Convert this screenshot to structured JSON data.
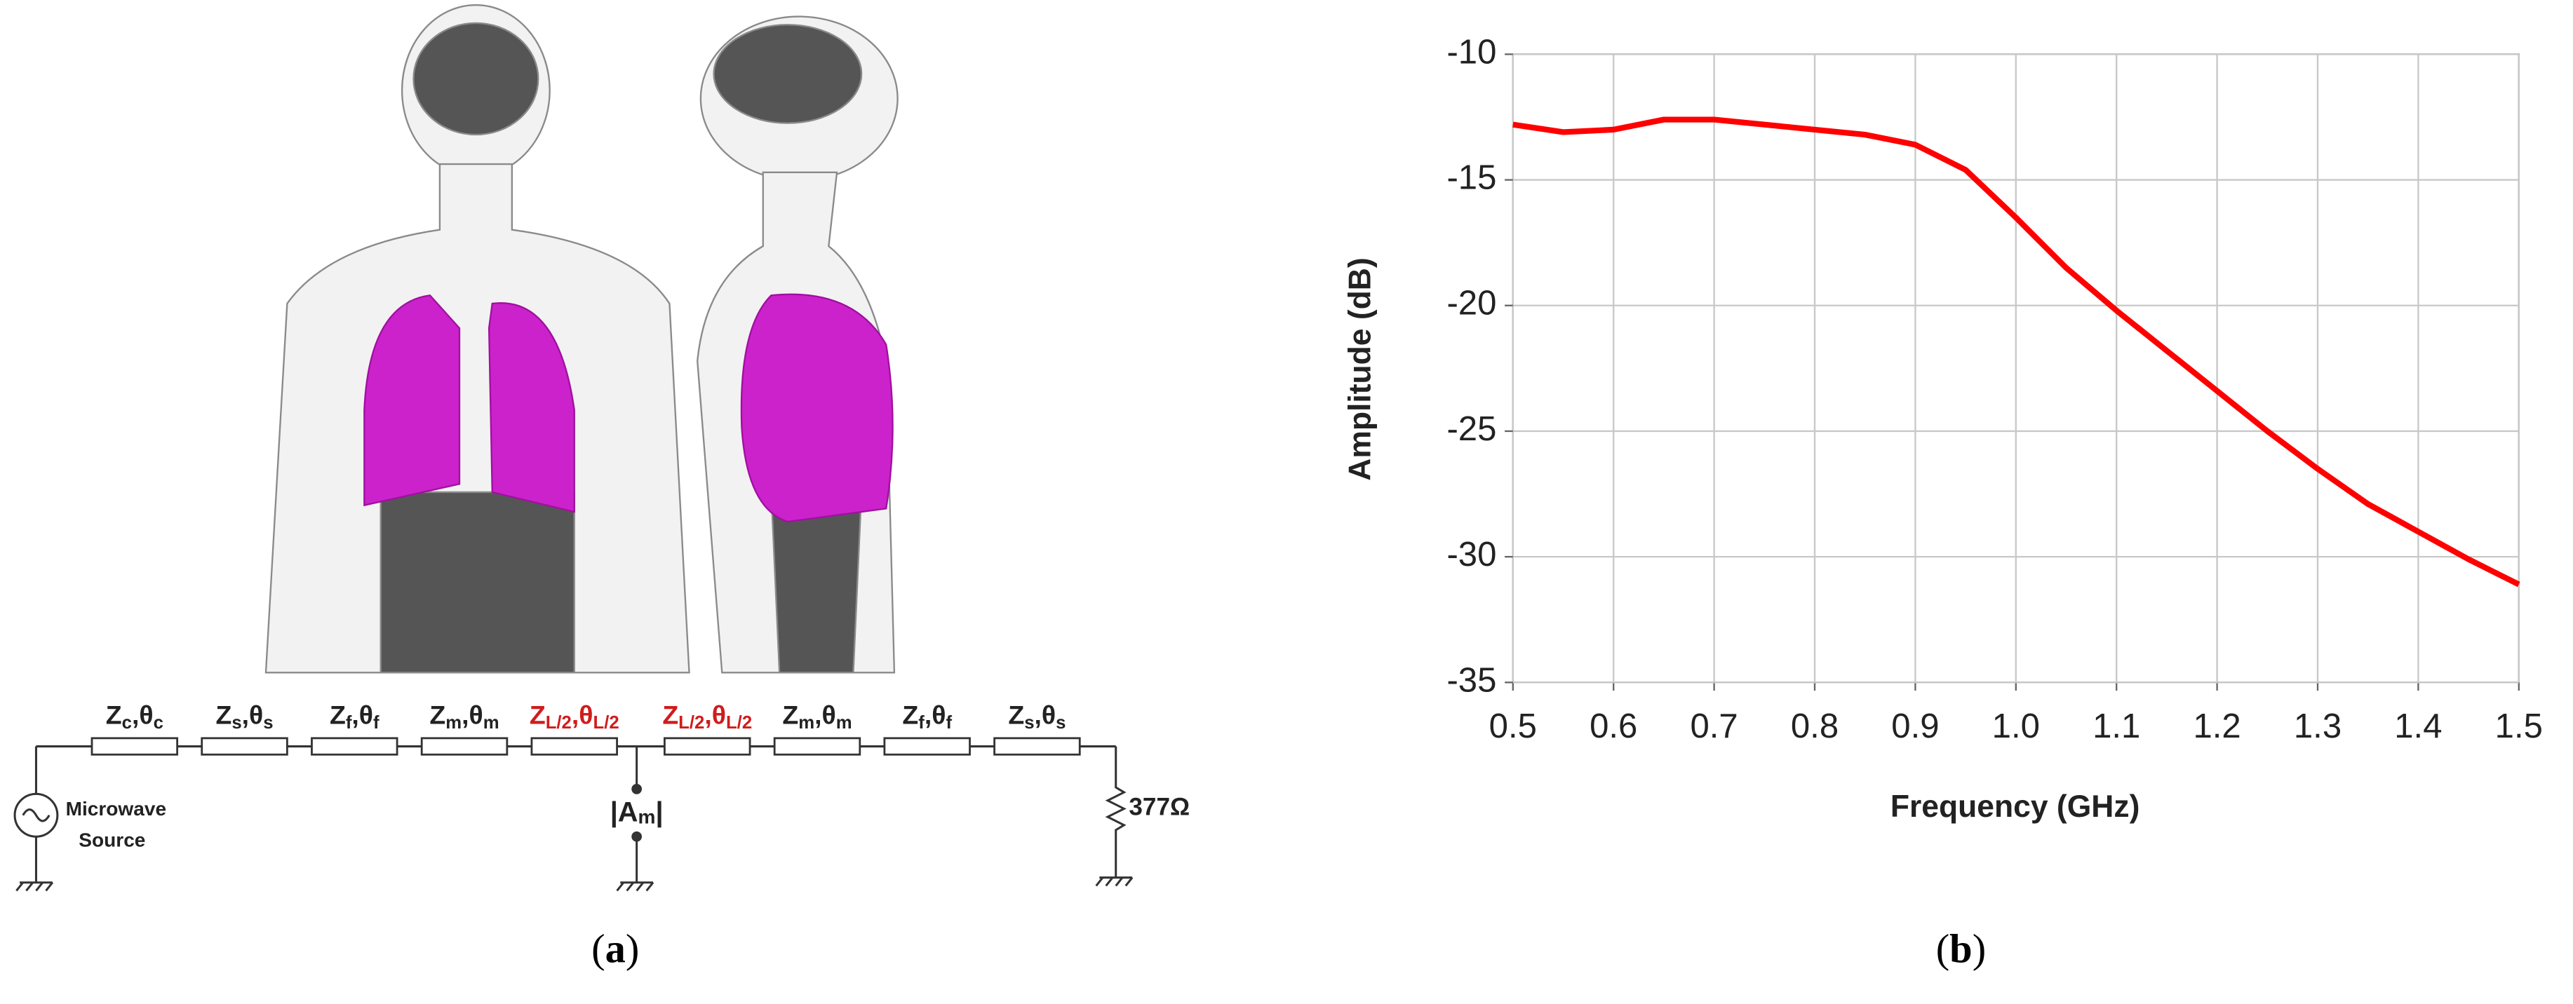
{
  "diagram": {
    "elements": [
      {
        "label": [
          "Z",
          "c",
          ",θ",
          "c"
        ],
        "color": "#222222"
      },
      {
        "label": [
          "Z",
          "s",
          ",θ",
          "s"
        ],
        "color": "#222222"
      },
      {
        "label": [
          "Z",
          "f",
          ",θ",
          "f"
        ],
        "color": "#222222"
      },
      {
        "label": [
          "Z",
          "m",
          ",θ",
          "m"
        ],
        "color": "#222222"
      },
      {
        "label": [
          "Z",
          "L/2",
          ",θ",
          "L/2"
        ],
        "color": "#d01c1c"
      },
      {
        "label": [
          "Z",
          "L/2",
          ",θ",
          "L/2"
        ],
        "color": "#d01c1c"
      },
      {
        "label": [
          "Z",
          "m",
          ",θ",
          "m"
        ],
        "color": "#222222"
      },
      {
        "label": [
          "Z",
          "f",
          ",θ",
          "f"
        ],
        "color": "#222222"
      },
      {
        "label": [
          "Z",
          "s",
          ",θ",
          "s"
        ],
        "color": "#222222"
      }
    ],
    "source": [
      "Microwave",
      "Source"
    ],
    "meter": [
      "|A",
      "m",
      "|"
    ],
    "load": "377Ω",
    "caption": [
      "(",
      "a",
      ")"
    ]
  },
  "chart_data": {
    "type": "line",
    "xlabel": "Frequency (GHz)",
    "ylabel": "Amplitude (dB)",
    "x": [
      0.5,
      0.55,
      0.6,
      0.65,
      0.7,
      0.75,
      0.8,
      0.85,
      0.9,
      0.95,
      1.0,
      1.05,
      1.1,
      1.15,
      1.2,
      1.25,
      1.3,
      1.35,
      1.4,
      1.45,
      1.5
    ],
    "series": [
      {
        "color": "#ff0000",
        "values": [
          -12.8,
          -13.1,
          -13.0,
          -12.6,
          -12.6,
          -12.8,
          -13.0,
          -13.2,
          -13.6,
          -14.6,
          -16.5,
          -18.5,
          -20.2,
          -21.8,
          -23.4,
          -25.0,
          -26.5,
          -27.9,
          -29.0,
          -30.1,
          -31.1
        ]
      }
    ],
    "xlim": [
      0.5,
      1.5
    ],
    "ylim": [
      -35,
      -10
    ],
    "xticks": [
      0.5,
      0.6,
      0.7,
      0.8,
      0.9,
      {
        "value": 1,
        "label": "1.0"
      },
      1.1,
      1.2,
      1.3,
      1.4,
      1.5
    ],
    "yticks": [
      -35,
      -30,
      -25,
      -20,
      -15,
      -10
    ],
    "grid": true,
    "caption": [
      "(",
      "b",
      ")"
    ]
  }
}
